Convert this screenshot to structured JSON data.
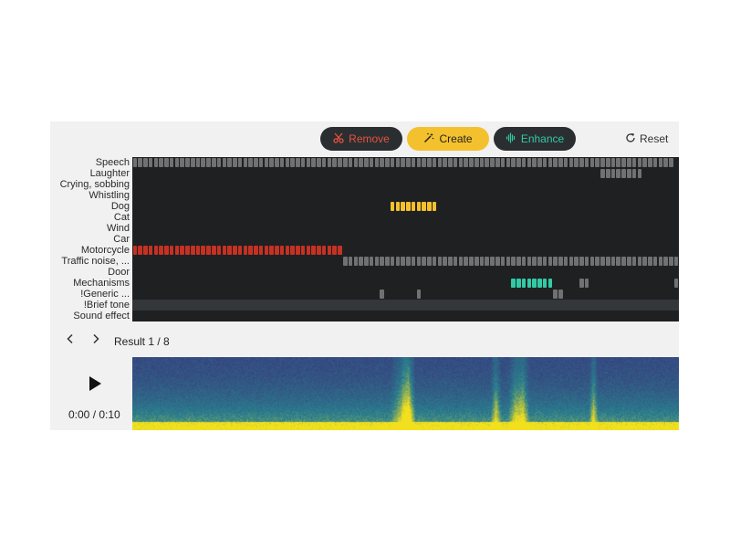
{
  "toolbar": {
    "remove_label": "Remove",
    "create_label": "Create",
    "enhance_label": "Enhance",
    "reset_label": "Reset",
    "remove_icon": "scissors-icon",
    "create_icon": "magic-wand-icon",
    "enhance_icon": "waveform-icon",
    "reset_icon": "refresh-icon"
  },
  "labels": [
    "Speech",
    "Laughter",
    "Crying, sobbing",
    "Whistling",
    "Dog",
    "Cat",
    "Wind",
    "Car",
    "Motorcycle",
    "Traffic noise, ...",
    "Door",
    "Mechanisms",
    "!Generic ...",
    "!Brief tone",
    "Sound effect"
  ],
  "colors": {
    "grid_bg": "#1e2022",
    "band": "#34373a",
    "gray": "#6f7173",
    "red": "#c63124",
    "yellow": "#f4c12e",
    "teal": "#32c9a6"
  },
  "timeline": {
    "steps": 104,
    "tracks": [
      {
        "label": "Speech",
        "color": "gray",
        "ranges": [
          [
            0,
            102
          ]
        ]
      },
      {
        "label": "Laughter",
        "color": "gray",
        "ranges": [
          [
            89,
            96
          ]
        ]
      },
      {
        "label": "Dog",
        "color": "yellow",
        "ranges": [
          [
            49,
            57
          ]
        ]
      },
      {
        "label": "Motorcycle",
        "color": "red",
        "ranges": [
          [
            0,
            39
          ]
        ]
      },
      {
        "label": "Traffic noise, ...",
        "color": "gray",
        "ranges": [
          [
            40,
            103
          ]
        ]
      },
      {
        "label": "Mechanisms",
        "color": "teal",
        "ranges": [
          [
            72,
            79
          ]
        ]
      },
      {
        "label": "Mechanisms",
        "color": "gray",
        "ranges": [
          [
            85,
            86
          ],
          [
            103,
            103
          ]
        ]
      },
      {
        "label": "!Generic ...",
        "color": "gray",
        "ranges": [
          [
            47,
            47
          ],
          [
            54,
            54
          ],
          [
            80,
            81
          ]
        ]
      }
    ],
    "band_label": "!Brief tone"
  },
  "navigation": {
    "prev_icon": "chevron-left-icon",
    "next_icon": "chevron-right-icon",
    "result_text": "Result 1 / 8"
  },
  "player": {
    "play_icon": "play-icon",
    "time_text": "0:00 / 0:10"
  },
  "spectrogram": {
    "name": "spectrogram-image",
    "low_color": "#3b2f7a",
    "mid_color": "#2a7f8e",
    "high_color": "#f2e01f"
  }
}
